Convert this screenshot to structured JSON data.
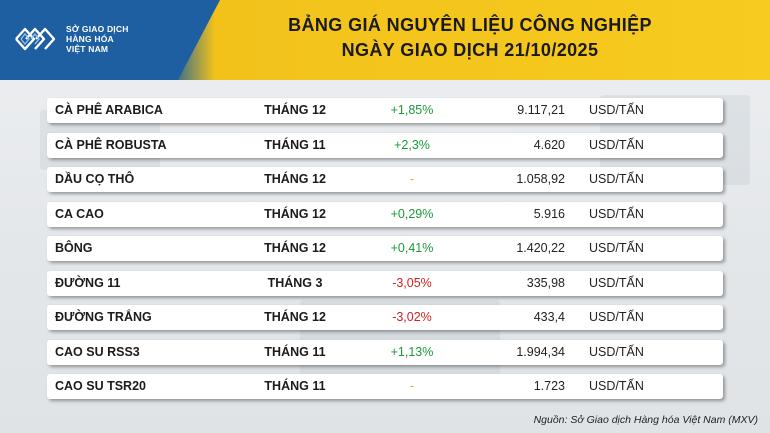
{
  "header": {
    "logo_lines": [
      "SỞ GIAO DỊCH",
      "HÀNG HÓA",
      "VIỆT NAM"
    ],
    "title_line1": "BẢNG GIÁ NGUYÊN LIỆU CÔNG NGHIỆP",
    "title_line2": "NGÀY GIAO DỊCH 21/10/2025"
  },
  "colors": {
    "brand_blue": "#1d5fa0",
    "header_yellow": "#f7cb1f",
    "positive": "#1a9a3a",
    "negative": "#d21f1f",
    "neutral": "#f0a020"
  },
  "rows": [
    {
      "name": "CÀ PHÊ ARABICA",
      "month": "THÁNG 12",
      "change": "+1,85%",
      "direction": "up",
      "price": "9.117,21",
      "unit": "USD/TẤN"
    },
    {
      "name": "CÀ PHÊ ROBUSTA",
      "month": "THÁNG 11",
      "change": "+2,3%",
      "direction": "up",
      "price": "4.620",
      "unit": "USD/TẤN"
    },
    {
      "name": "DẦU CỌ THÔ",
      "month": "THÁNG 12",
      "change": "-",
      "direction": "flat",
      "price": "1.058,92",
      "unit": "USD/TẤN"
    },
    {
      "name": "CA CAO",
      "month": "THÁNG 12",
      "change": "+0,29%",
      "direction": "up",
      "price": "5.916",
      "unit": "USD/TẤN"
    },
    {
      "name": "BÔNG",
      "month": "THÁNG 12",
      "change": "+0,41%",
      "direction": "up",
      "price": "1.420,22",
      "unit": "USD/TẤN"
    },
    {
      "name": "ĐƯỜNG 11",
      "month": "THÁNG 3",
      "change": "-3,05%",
      "direction": "down",
      "price": "335,98",
      "unit": "USD/TẤN"
    },
    {
      "name": "ĐƯỜNG TRẮNG",
      "month": "THÁNG 12",
      "change": "-3,02%",
      "direction": "down",
      "price": "433,4",
      "unit": "USD/TẤN"
    },
    {
      "name": "CAO SU RSS3",
      "month": "THÁNG 11",
      "change": "+1,13%",
      "direction": "up",
      "price": "1.994,34",
      "unit": "USD/TẤN"
    },
    {
      "name": "CAO SU TSR20",
      "month": "THÁNG 11",
      "change": "-",
      "direction": "flat",
      "price": "1.723",
      "unit": "USD/TẤN"
    }
  ],
  "footer": {
    "source": "Nguồn: Sở Giao dịch Hàng hóa Việt Nam (MXV)"
  }
}
